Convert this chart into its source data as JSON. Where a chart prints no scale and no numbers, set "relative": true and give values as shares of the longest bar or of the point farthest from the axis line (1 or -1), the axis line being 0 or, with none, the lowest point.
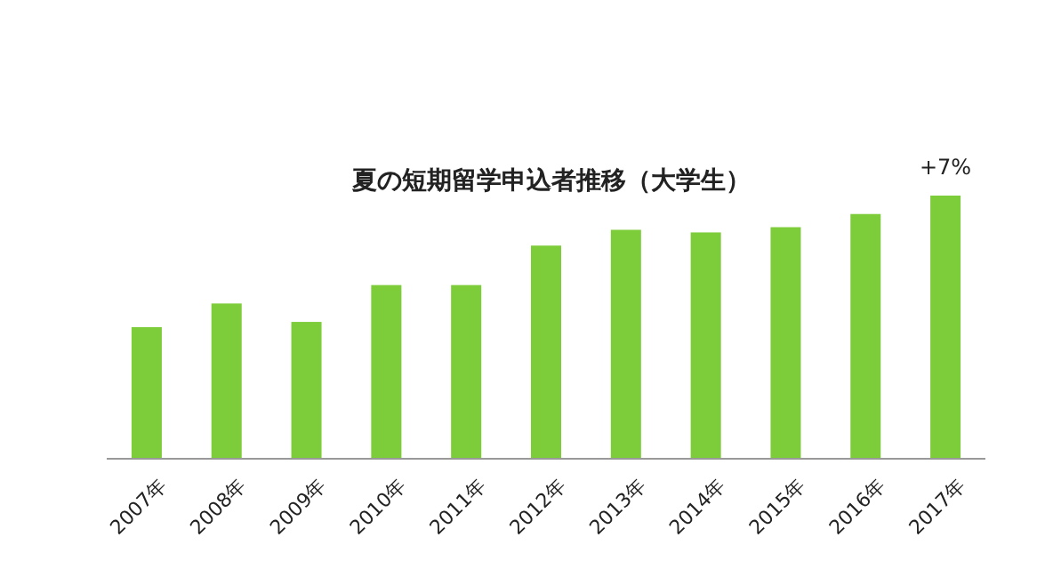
{
  "chart_data": {
    "type": "bar",
    "title": "夏の短期留学申込者推移（大学生）",
    "relative": true,
    "categories": [
      "2007年",
      "2008年",
      "2009年",
      "2010年",
      "2011年",
      "2012年",
      "2013年",
      "2014年",
      "2015年",
      "2016年",
      "2017年"
    ],
    "values": [
      0.5,
      0.59,
      0.52,
      0.66,
      0.66,
      0.81,
      0.87,
      0.86,
      0.88,
      0.93,
      1
    ],
    "color": "#7dcc3a",
    "annotations": [
      {
        "text": "+7%",
        "x": "2017年",
        "y": 1
      }
    ]
  }
}
